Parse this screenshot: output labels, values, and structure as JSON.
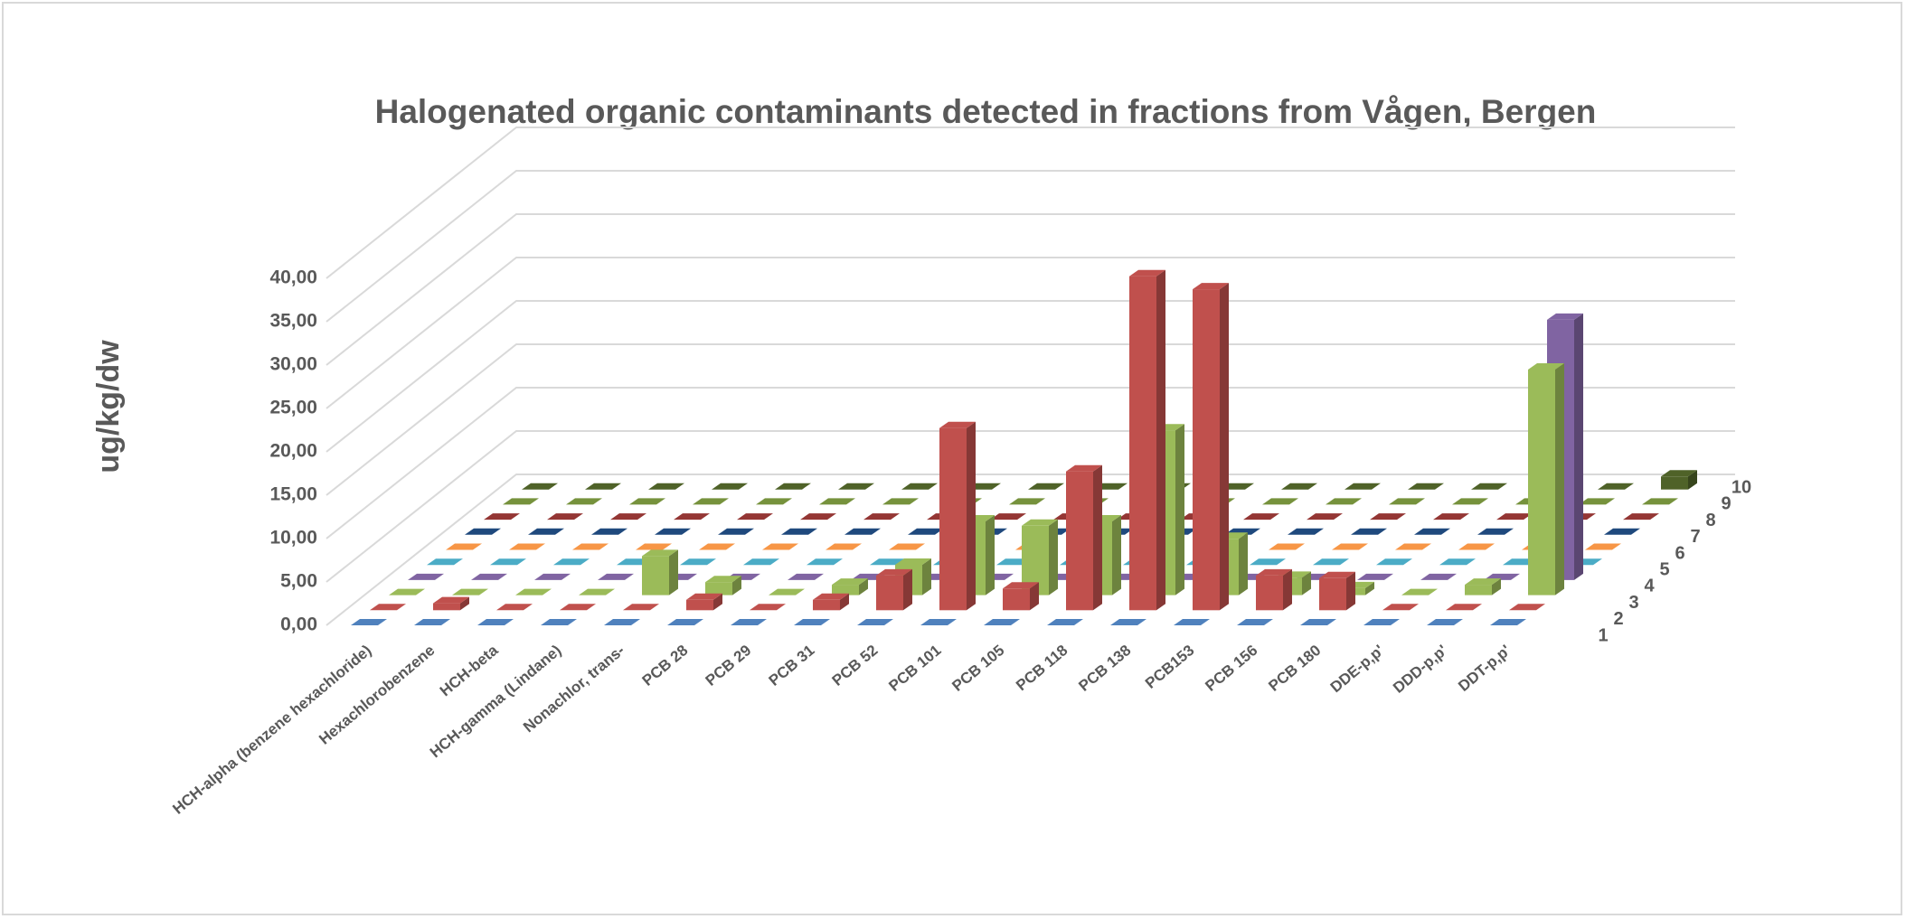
{
  "chart_data": {
    "type": "bar3d",
    "title": "Halogenated organic contaminants detected in fractions from Vågen, Bergen",
    "y_label": "ug/kg/dw",
    "categories": [
      "HCH-alpha (benzene hexachloride)",
      "Hexachlorobenzene",
      "HCH-beta",
      "HCH-gamma (Lindane)",
      "Nonachlor, trans-",
      "PCB 28",
      "PCB 29",
      "PCB 31",
      "PCB 52",
      "PCB 101",
      "PCB 105",
      "PCB 118",
      "PCB 138",
      "PCB153",
      "PCB 156",
      "PCB 180",
      "DDE-p,p'",
      "DDD-p,p'",
      "DDT-p,p'"
    ],
    "series": [
      {
        "name": "1",
        "color": "#4f81bd",
        "values": [
          0,
          0,
          0,
          0,
          0,
          0,
          0,
          0,
          0,
          0,
          0,
          0,
          0,
          0,
          0,
          0,
          0,
          0,
          0
        ]
      },
      {
        "name": "2",
        "color": "#c0504d",
        "values": [
          0,
          0.8,
          0,
          0,
          0,
          1.2,
          0,
          1.2,
          4,
          21,
          2.5,
          16,
          38.5,
          37,
          4,
          3.7,
          0,
          0,
          0
        ]
      },
      {
        "name": "3",
        "color": "#9bbb59",
        "values": [
          0,
          0,
          0,
          0,
          4.5,
          1.5,
          0,
          1.2,
          3.5,
          8.5,
          8,
          8.5,
          19,
          6.5,
          2,
          0.8,
          0,
          1.2,
          26
        ]
      },
      {
        "name": "4",
        "color": "#8064a2",
        "values": [
          0,
          0,
          0,
          0,
          0,
          0,
          0,
          0,
          0,
          0,
          0,
          0,
          0,
          0,
          0,
          0,
          0,
          0,
          30
        ]
      },
      {
        "name": "5",
        "color": "#4bacc6",
        "values": [
          0,
          0,
          0,
          0,
          0,
          0,
          0,
          0,
          0,
          0,
          0,
          0,
          0,
          0,
          0,
          0,
          0,
          0,
          0
        ]
      },
      {
        "name": "6",
        "color": "#f79646",
        "values": [
          0,
          0,
          0,
          0,
          0,
          0,
          0,
          0,
          0,
          0,
          0,
          0,
          0,
          0,
          0,
          0,
          0,
          0,
          0
        ]
      },
      {
        "name": "7",
        "color": "#1f497d",
        "values": [
          0,
          0,
          0,
          0,
          0,
          0,
          0,
          0,
          0,
          0,
          0,
          0,
          0,
          0,
          0,
          0,
          0,
          0,
          0
        ]
      },
      {
        "name": "8",
        "color": "#943634",
        "values": [
          0,
          0,
          0,
          0,
          0,
          0,
          0,
          0,
          0,
          0,
          0,
          0,
          0,
          0,
          0,
          0,
          0,
          0,
          0
        ]
      },
      {
        "name": "9",
        "color": "#76923c",
        "values": [
          0,
          0,
          0,
          0,
          0,
          0,
          0,
          0,
          0,
          0,
          0,
          0,
          0,
          0,
          0,
          0,
          0,
          0,
          0
        ]
      },
      {
        "name": "10",
        "color": "#4f6228",
        "values": [
          0,
          0,
          0,
          0,
          0,
          0,
          0,
          0,
          0,
          0,
          0,
          0,
          0,
          0,
          0,
          0,
          0,
          0,
          1.5
        ]
      }
    ],
    "ylim": [
      0,
      40
    ],
    "yticks": [
      {
        "value": 0,
        "label": "0,00"
      },
      {
        "value": 5,
        "label": "5,00"
      },
      {
        "value": 10,
        "label": "10,00"
      },
      {
        "value": 15,
        "label": "15,00"
      },
      {
        "value": 20,
        "label": "20,00"
      },
      {
        "value": 25,
        "label": "25,00"
      },
      {
        "value": 30,
        "label": "30,00"
      },
      {
        "value": 35,
        "label": "35,00"
      },
      {
        "value": 40,
        "label": "40,00"
      }
    ],
    "grid": true
  }
}
